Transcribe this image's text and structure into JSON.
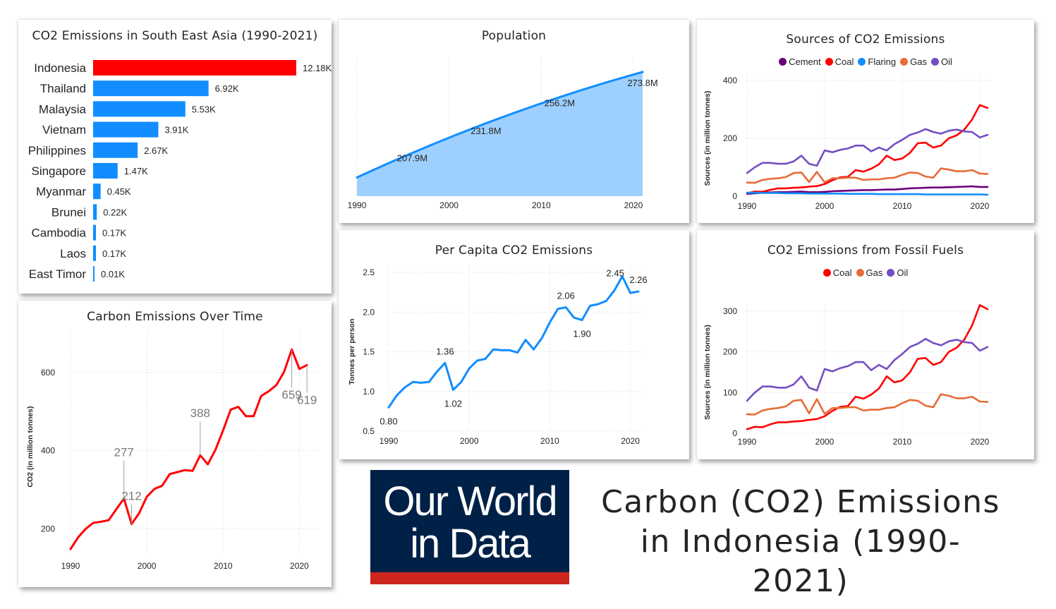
{
  "main_title": {
    "line1": "Carbon (CO2) Emissions",
    "line2": "in Indonesia (1990-2021)"
  },
  "logo": {
    "line1": "Our World",
    "line2": "in Data"
  },
  "colors": {
    "red": "#ff0000",
    "blue": "#118dff",
    "area": "#9ed0ff",
    "cement": "#6b007b",
    "coal": "#ff0000",
    "flaring": "#118dff",
    "gas": "#e66c37",
    "oil": "#744ec2",
    "logo_bg": "#002147",
    "logo_stripe": "#ce261e"
  },
  "chart_data": [
    {
      "id": "bar",
      "type": "bar",
      "orientation": "horizontal",
      "title": "CO2 Emissions in South East Asia (1990-2021)",
      "categories": [
        "Indonesia",
        "Thailand",
        "Malaysia",
        "Vietnam",
        "Philippines",
        "Singapore",
        "Myanmar",
        "Brunei",
        "Cambodia",
        "Laos",
        "East Timor"
      ],
      "values": [
        12.18,
        6.92,
        5.53,
        3.91,
        2.67,
        1.47,
        0.45,
        0.22,
        0.17,
        0.17,
        0.01
      ],
      "labels": [
        "12.18K",
        "6.92K",
        "5.53K",
        "3.91K",
        "2.67K",
        "1.47K",
        "0.45K",
        "0.22K",
        "0.17K",
        "0.17K",
        "0.01K"
      ],
      "highlight_index": 0
    },
    {
      "id": "population",
      "type": "area",
      "title": "Population",
      "x": [
        1990,
        2021
      ],
      "y": [
        181.4,
        273.8
      ],
      "ylim": [
        165,
        280
      ],
      "xlim": [
        1990,
        2021
      ],
      "xticks": [
        "1990",
        "2000",
        "2010",
        "2020"
      ],
      "annotations": [
        {
          "x": 1996,
          "y": 207.9,
          "label": "207.9M"
        },
        {
          "x": 2004,
          "y": 231.8,
          "label": "231.8M"
        },
        {
          "x": 2012,
          "y": 256.2,
          "label": "256.2M"
        },
        {
          "x": 2021,
          "y": 273.8,
          "label": "273.8M"
        }
      ]
    },
    {
      "id": "sources",
      "type": "line",
      "title": "Sources of CO2 Emissions",
      "ylabel": "Sources (in million tonnes)",
      "xlim": [
        1990,
        2021
      ],
      "ylim": [
        0,
        400
      ],
      "yticks": [
        "0",
        "200",
        "400"
      ],
      "xticks": [
        "1990",
        "2000",
        "2010",
        "2020"
      ],
      "x": [
        1990,
        1991,
        1992,
        1993,
        1994,
        1995,
        1996,
        1997,
        1998,
        1999,
        2000,
        2001,
        2002,
        2003,
        2004,
        2005,
        2006,
        2007,
        2008,
        2009,
        2010,
        2011,
        2012,
        2013,
        2014,
        2015,
        2016,
        2017,
        2018,
        2019,
        2020,
        2021
      ],
      "series": [
        {
          "name": "Cement",
          "color": "#6b007b",
          "values": [
            8,
            10,
            12,
            13,
            14,
            14,
            15,
            16,
            14,
            14,
            15,
            17,
            18,
            19,
            20,
            21,
            21,
            22,
            23,
            23,
            25,
            27,
            28,
            29,
            30,
            30,
            31,
            32,
            33,
            34,
            32,
            32
          ]
        },
        {
          "name": "Coal",
          "color": "#ff0000",
          "values": [
            10,
            16,
            15,
            22,
            27,
            27,
            29,
            30,
            33,
            35,
            42,
            55,
            65,
            67,
            90,
            85,
            95,
            110,
            140,
            125,
            130,
            150,
            183,
            185,
            168,
            175,
            200,
            210,
            230,
            265,
            315,
            305
          ]
        },
        {
          "name": "Flaring",
          "color": "#118dff",
          "values": [
            12,
            12,
            11,
            11,
            11,
            10,
            10,
            10,
            9,
            9,
            9,
            9,
            9,
            8,
            8,
            8,
            8,
            7,
            7,
            7,
            7,
            7,
            7,
            6,
            6,
            6,
            6,
            6,
            6,
            6,
            6,
            5
          ]
        },
        {
          "name": "Gas",
          "color": "#e66c37",
          "values": [
            47,
            46,
            56,
            60,
            62,
            66,
            80,
            82,
            49,
            84,
            48,
            62,
            62,
            64,
            64,
            56,
            58,
            58,
            62,
            64,
            74,
            82,
            80,
            68,
            64,
            96,
            92,
            86,
            86,
            90,
            78,
            77
          ]
        },
        {
          "name": "Oil",
          "color": "#744ec2",
          "values": [
            80,
            100,
            115,
            115,
            112,
            112,
            120,
            140,
            112,
            105,
            158,
            152,
            160,
            165,
            175,
            175,
            155,
            168,
            158,
            180,
            195,
            212,
            220,
            232,
            222,
            216,
            226,
            230,
            224,
            222,
            203,
            212
          ]
        }
      ]
    },
    {
      "id": "over_time",
      "type": "line",
      "title": "Carbon Emissions Over Time",
      "ylabel": "CO2 (in million tonnes)",
      "xlim": [
        1990,
        2022
      ],
      "ylim": [
        130,
        690
      ],
      "yticks": [
        "200",
        "400",
        "600"
      ],
      "xticks": [
        "1990",
        "2000",
        "2010",
        "2020"
      ],
      "x": [
        1990,
        1991,
        1992,
        1993,
        1994,
        1995,
        1996,
        1997,
        1998,
        1999,
        2000,
        2001,
        2002,
        2003,
        2004,
        2005,
        2006,
        2007,
        2008,
        2009,
        2010,
        2011,
        2012,
        2013,
        2014,
        2015,
        2016,
        2017,
        2018,
        2019,
        2020,
        2021
      ],
      "values": [
        148,
        178,
        200,
        215,
        218,
        222,
        250,
        277,
        212,
        240,
        282,
        302,
        310,
        340,
        345,
        350,
        348,
        388,
        365,
        402,
        452,
        505,
        512,
        488,
        488,
        540,
        552,
        568,
        602,
        659,
        609,
        619
      ],
      "annotations": [
        {
          "x": 1997,
          "y": 277,
          "label": "277"
        },
        {
          "x": 1998,
          "y": 212,
          "label": "212"
        },
        {
          "x": 2007,
          "y": 388,
          "label": "388"
        },
        {
          "x": 2019,
          "y": 659,
          "label": "659"
        },
        {
          "x": 2021,
          "y": 619,
          "label": "619"
        }
      ]
    },
    {
      "id": "per_capita",
      "type": "line",
      "title": "Per Capita CO2 Emissions",
      "ylabel": "Tonnes per person",
      "xlim": [
        1990,
        2021
      ],
      "ylim": [
        0.5,
        2.5
      ],
      "yticks": [
        "0.5",
        "1.0",
        "1.5",
        "2.0",
        "2.5"
      ],
      "xticks": [
        "1990",
        "2000",
        "2010",
        "2020"
      ],
      "x": [
        1990,
        1991,
        1992,
        1993,
        1994,
        1995,
        1996,
        1997,
        1998,
        1999,
        2000,
        2001,
        2002,
        2003,
        2004,
        2005,
        2006,
        2007,
        2008,
        2009,
        2010,
        2011,
        2012,
        2013,
        2014,
        2015,
        2016,
        2017,
        2018,
        2019,
        2020,
        2021
      ],
      "values": [
        0.8,
        0.95,
        1.05,
        1.12,
        1.11,
        1.12,
        1.25,
        1.36,
        1.02,
        1.12,
        1.29,
        1.39,
        1.41,
        1.53,
        1.52,
        1.52,
        1.49,
        1.65,
        1.53,
        1.67,
        1.87,
        2.04,
        2.06,
        1.93,
        1.9,
        2.08,
        2.1,
        2.14,
        2.27,
        2.45,
        2.24,
        2.26
      ],
      "annotations": [
        {
          "x": 1990,
          "y": 0.8,
          "label": "0.80",
          "pos": "below"
        },
        {
          "x": 1997,
          "y": 1.36,
          "label": "1.36",
          "pos": "above"
        },
        {
          "x": 1998,
          "y": 1.02,
          "label": "1.02",
          "pos": "below"
        },
        {
          "x": 2012,
          "y": 2.06,
          "label": "2.06",
          "pos": "above"
        },
        {
          "x": 2014,
          "y": 1.9,
          "label": "1.90",
          "pos": "below"
        },
        {
          "x": 2019,
          "y": 2.45,
          "label": "2.45",
          "pos": "left"
        },
        {
          "x": 2021,
          "y": 2.26,
          "label": "2.26",
          "pos": "above"
        }
      ]
    },
    {
      "id": "fossil",
      "type": "line",
      "title": "CO2 Emissions from Fossil Fuels",
      "ylabel": "Sources (in million tonnes)",
      "xlim": [
        1990,
        2021
      ],
      "ylim": [
        0,
        300
      ],
      "yticks": [
        "0",
        "100",
        "200",
        "300"
      ],
      "xticks": [
        "1990",
        "2000",
        "2010",
        "2020"
      ],
      "x": [
        1990,
        1991,
        1992,
        1993,
        1994,
        1995,
        1996,
        1997,
        1998,
        1999,
        2000,
        2001,
        2002,
        2003,
        2004,
        2005,
        2006,
        2007,
        2008,
        2009,
        2010,
        2011,
        2012,
        2013,
        2014,
        2015,
        2016,
        2017,
        2018,
        2019,
        2020,
        2021
      ],
      "series": [
        {
          "name": "Coal",
          "color": "#ff0000",
          "values": [
            10,
            16,
            15,
            22,
            27,
            27,
            29,
            30,
            33,
            35,
            42,
            55,
            65,
            67,
            90,
            85,
            95,
            110,
            140,
            125,
            130,
            150,
            183,
            185,
            168,
            175,
            200,
            210,
            230,
            265,
            315,
            305
          ]
        },
        {
          "name": "Gas",
          "color": "#e66c37",
          "values": [
            47,
            46,
            56,
            60,
            62,
            66,
            80,
            82,
            49,
            84,
            48,
            62,
            62,
            64,
            64,
            56,
            58,
            58,
            62,
            64,
            74,
            82,
            80,
            68,
            64,
            96,
            92,
            86,
            86,
            90,
            78,
            77
          ]
        },
        {
          "name": "Oil",
          "color": "#744ec2",
          "values": [
            80,
            100,
            115,
            115,
            112,
            112,
            120,
            140,
            112,
            105,
            158,
            152,
            160,
            165,
            175,
            175,
            155,
            168,
            158,
            180,
            195,
            212,
            220,
            232,
            222,
            216,
            226,
            230,
            224,
            222,
            203,
            212
          ]
        }
      ]
    }
  ]
}
